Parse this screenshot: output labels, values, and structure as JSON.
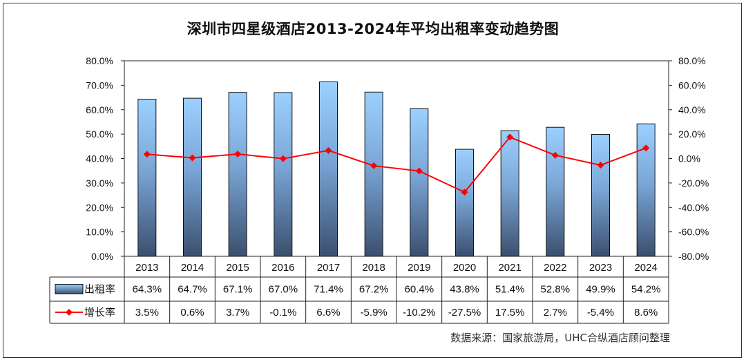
{
  "chart_data": {
    "type": "bar",
    "title": "深圳市四星级酒店2013-2024年平均出租率变动趋势图",
    "source": "数据来源：国家旅游局，UHC合纵酒店顾问整理",
    "categories": [
      "2013",
      "2014",
      "2015",
      "2016",
      "2017",
      "2018",
      "2019",
      "2020",
      "2021",
      "2022",
      "2023",
      "2024"
    ],
    "series": [
      {
        "name": "出租率",
        "type": "bar",
        "axis": "left",
        "values": [
          64.3,
          64.7,
          67.1,
          67.0,
          71.4,
          67.2,
          60.4,
          43.8,
          51.4,
          52.8,
          49.9,
          54.2
        ],
        "labels": [
          "64.3%",
          "64.7%",
          "67.1%",
          "67.0%",
          "71.4%",
          "67.2%",
          "60.4%",
          "43.8%",
          "51.4%",
          "52.8%",
          "49.9%",
          "54.2%"
        ],
        "color": "#8fc3f5"
      },
      {
        "name": "增长率",
        "type": "line",
        "axis": "right",
        "values": [
          3.5,
          0.6,
          3.7,
          -0.1,
          6.6,
          -5.9,
          -10.2,
          -27.5,
          17.5,
          2.7,
          -5.4,
          8.6
        ],
        "labels": [
          "3.5%",
          "0.6%",
          "3.7%",
          "-0.1%",
          "6.6%",
          "-5.9%",
          "-10.2%",
          "-27.5%",
          "17.5%",
          "2.7%",
          "-5.4%",
          "8.6%"
        ],
        "color": "#ff0000"
      }
    ],
    "y_left": {
      "min": 0,
      "max": 80,
      "ticks": [
        "0.0%",
        "10.0%",
        "20.0%",
        "30.0%",
        "40.0%",
        "50.0%",
        "60.0%",
        "70.0%",
        "80.0%"
      ]
    },
    "y_right": {
      "min": -80,
      "max": 80,
      "ticks": [
        "-80.0%",
        "-60.0%",
        "-40.0%",
        "-20.0%",
        "0.0%",
        "20.0%",
        "40.0%",
        "60.0%",
        "80.0%"
      ]
    },
    "grid": false,
    "legend": "data-table-rows"
  }
}
